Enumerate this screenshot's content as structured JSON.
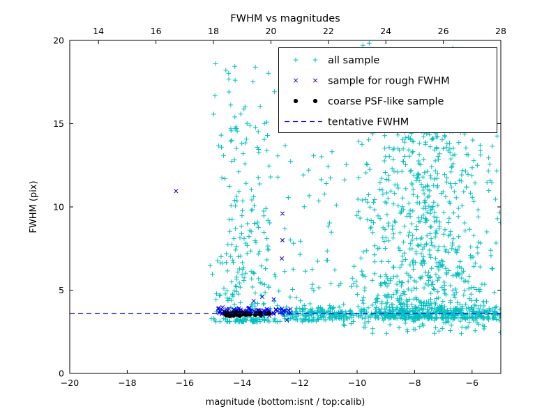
{
  "chart_data": {
    "type": "scatter",
    "title": "FWHM vs magnitudes",
    "xlabel": "magnitude (bottom:isnt / top:calib)",
    "ylabel": "FWHM (pix)",
    "grid": false,
    "axes": {
      "x_bottom": {
        "min": -20,
        "max": -5,
        "ticks": [
          -20,
          -18,
          -16,
          -14,
          -12,
          -10,
          -8,
          -6
        ]
      },
      "x_top": {
        "min": 13,
        "max": 28,
        "ticks": [
          14,
          16,
          18,
          20,
          22,
          24,
          26,
          28
        ],
        "offset_vs_bottom": 33
      },
      "y": {
        "min": 0,
        "max": 20,
        "ticks": [
          0,
          5,
          10,
          15,
          20
        ]
      }
    },
    "legend": {
      "position": "upper right",
      "labels": [
        "all sample",
        "sample for rough FWHM",
        "coarse PSF-like sample",
        "tentative FWHM"
      ]
    },
    "tentative_fwhm_value": 3.6,
    "series": [
      {
        "name": "all sample",
        "marker": "plus",
        "color": "#00bfbf",
        "clusters": [
          {
            "n": 300,
            "x": {
              "dist": "normal",
              "mu": -13.85,
              "sigma": 0.62,
              "min": -15.15,
              "max": -12.25
            },
            "y": {
              "dist": "powtail",
              "base": 3.1,
              "scale": 15.6,
              "exp": 2.8,
              "max": 18.7
            }
          },
          {
            "n": 400,
            "x": {
              "dist": "uniform",
              "min": -12.7,
              "max": -4.95
            },
            "y": {
              "dist": "normal",
              "mu": 3.6,
              "sigma": 0.22,
              "min": 2.9,
              "max": 4.4
            }
          },
          {
            "n": 800,
            "x": {
              "dist": "normal",
              "mu": -7.6,
              "sigma": 1.25,
              "min": -11.3,
              "max": -4.9
            },
            "y": {
              "dist": "powtail",
              "base": 3.3,
              "scale": 11.5,
              "exp": 2.4,
              "max": 15.2
            }
          },
          {
            "n": 130,
            "x": {
              "dist": "normal",
              "mu": -7.7,
              "sigma": 1.5,
              "min": -11.6,
              "max": -5.0
            },
            "y": {
              "dist": "uniform",
              "min": 9.0,
              "max": 16.2
            }
          },
          {
            "n": 14,
            "x": {
              "dist": "uniform",
              "min": -10.5,
              "max": -5.2
            },
            "y": {
              "dist": "uniform",
              "min": 16.2,
              "max": 19.9
            }
          },
          {
            "n": 60,
            "x": {
              "dist": "uniform",
              "min": -12.4,
              "max": -10.9
            },
            "y": {
              "dist": "powtail",
              "base": 3.2,
              "scale": 12.0,
              "exp": 3.0
            }
          },
          {
            "n": 40,
            "x": {
              "dist": "uniform",
              "min": -10.5,
              "max": -4.95
            },
            "y": {
              "dist": "uniform",
              "min": 2.4,
              "max": 3.2
            }
          }
        ],
        "points": [
          [
            -14.93,
            18.6
          ],
          [
            -9.8,
            19.7
          ],
          [
            -7.85,
            19.4
          ]
        ]
      },
      {
        "name": "sample for rough FWHM",
        "marker": "x",
        "color": "#0000ee",
        "clusters": [
          {
            "n": 90,
            "x": {
              "dist": "uniform",
              "min": -14.85,
              "max": -12.3
            },
            "y": {
              "dist": "normal",
              "mu": 3.72,
              "sigma": 0.11,
              "min": 3.45,
              "max": 4.05
            }
          }
        ],
        "points": [
          [
            -16.3,
            10.95
          ],
          [
            -12.6,
            9.6
          ],
          [
            -12.6,
            8.0
          ],
          [
            -12.62,
            6.9
          ],
          [
            -13.3,
            4.6
          ],
          [
            -12.9,
            4.45
          ],
          [
            -13.6,
            4.35
          ],
          [
            -12.45,
            3.2
          ]
        ]
      },
      {
        "name": "coarse PSF-like sample",
        "marker": "circle",
        "color": "#000000",
        "clusters": [
          {
            "n": 48,
            "x": {
              "dist": "uniform",
              "min": -14.65,
              "max": -13.0
            },
            "y": {
              "dist": "normal",
              "mu": 3.55,
              "sigma": 0.06
            }
          }
        ],
        "points": []
      },
      {
        "name": "tentative FWHM",
        "marker": "dashed-line",
        "color": "#0000ee",
        "y_value": 3.6
      }
    ]
  },
  "colors": {
    "background": "#ffffff",
    "axis": "#000000"
  },
  "render": {
    "seed": 42
  }
}
